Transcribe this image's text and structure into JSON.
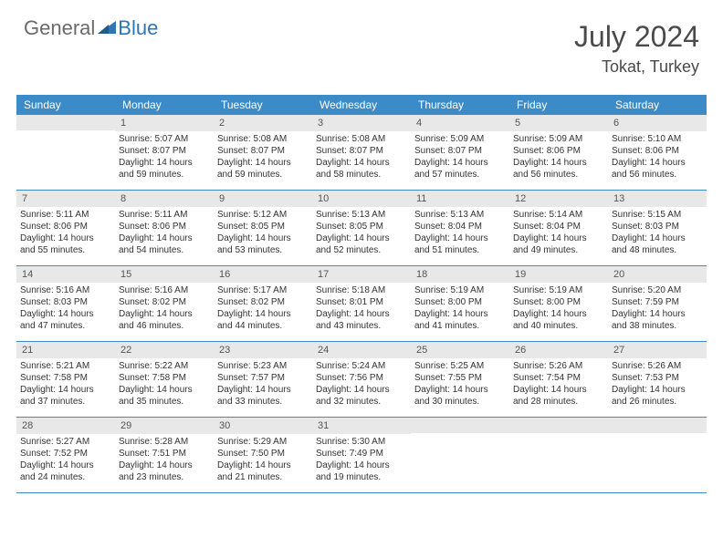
{
  "logo": {
    "part1": "General",
    "part2": "Blue"
  },
  "header": {
    "title": "July 2024",
    "location": "Tokat, Turkey"
  },
  "colors": {
    "header_bg": "#3b8bc9",
    "header_text": "#ffffff",
    "daynum_bg": "#e8e8e8",
    "text": "#333333",
    "logo_grey": "#6a6a6a",
    "logo_blue": "#2f75b5"
  },
  "dayNames": [
    "Sunday",
    "Monday",
    "Tuesday",
    "Wednesday",
    "Thursday",
    "Friday",
    "Saturday"
  ],
  "weeks": [
    [
      {
        "num": "",
        "lines": []
      },
      {
        "num": "1",
        "lines": [
          "Sunrise: 5:07 AM",
          "Sunset: 8:07 PM",
          "Daylight: 14 hours",
          "and 59 minutes."
        ]
      },
      {
        "num": "2",
        "lines": [
          "Sunrise: 5:08 AM",
          "Sunset: 8:07 PM",
          "Daylight: 14 hours",
          "and 59 minutes."
        ]
      },
      {
        "num": "3",
        "lines": [
          "Sunrise: 5:08 AM",
          "Sunset: 8:07 PM",
          "Daylight: 14 hours",
          "and 58 minutes."
        ]
      },
      {
        "num": "4",
        "lines": [
          "Sunrise: 5:09 AM",
          "Sunset: 8:07 PM",
          "Daylight: 14 hours",
          "and 57 minutes."
        ]
      },
      {
        "num": "5",
        "lines": [
          "Sunrise: 5:09 AM",
          "Sunset: 8:06 PM",
          "Daylight: 14 hours",
          "and 56 minutes."
        ]
      },
      {
        "num": "6",
        "lines": [
          "Sunrise: 5:10 AM",
          "Sunset: 8:06 PM",
          "Daylight: 14 hours",
          "and 56 minutes."
        ]
      }
    ],
    [
      {
        "num": "7",
        "lines": [
          "Sunrise: 5:11 AM",
          "Sunset: 8:06 PM",
          "Daylight: 14 hours",
          "and 55 minutes."
        ]
      },
      {
        "num": "8",
        "lines": [
          "Sunrise: 5:11 AM",
          "Sunset: 8:06 PM",
          "Daylight: 14 hours",
          "and 54 minutes."
        ]
      },
      {
        "num": "9",
        "lines": [
          "Sunrise: 5:12 AM",
          "Sunset: 8:05 PM",
          "Daylight: 14 hours",
          "and 53 minutes."
        ]
      },
      {
        "num": "10",
        "lines": [
          "Sunrise: 5:13 AM",
          "Sunset: 8:05 PM",
          "Daylight: 14 hours",
          "and 52 minutes."
        ]
      },
      {
        "num": "11",
        "lines": [
          "Sunrise: 5:13 AM",
          "Sunset: 8:04 PM",
          "Daylight: 14 hours",
          "and 51 minutes."
        ]
      },
      {
        "num": "12",
        "lines": [
          "Sunrise: 5:14 AM",
          "Sunset: 8:04 PM",
          "Daylight: 14 hours",
          "and 49 minutes."
        ]
      },
      {
        "num": "13",
        "lines": [
          "Sunrise: 5:15 AM",
          "Sunset: 8:03 PM",
          "Daylight: 14 hours",
          "and 48 minutes."
        ]
      }
    ],
    [
      {
        "num": "14",
        "lines": [
          "Sunrise: 5:16 AM",
          "Sunset: 8:03 PM",
          "Daylight: 14 hours",
          "and 47 minutes."
        ]
      },
      {
        "num": "15",
        "lines": [
          "Sunrise: 5:16 AM",
          "Sunset: 8:02 PM",
          "Daylight: 14 hours",
          "and 46 minutes."
        ]
      },
      {
        "num": "16",
        "lines": [
          "Sunrise: 5:17 AM",
          "Sunset: 8:02 PM",
          "Daylight: 14 hours",
          "and 44 minutes."
        ]
      },
      {
        "num": "17",
        "lines": [
          "Sunrise: 5:18 AM",
          "Sunset: 8:01 PM",
          "Daylight: 14 hours",
          "and 43 minutes."
        ]
      },
      {
        "num": "18",
        "lines": [
          "Sunrise: 5:19 AM",
          "Sunset: 8:00 PM",
          "Daylight: 14 hours",
          "and 41 minutes."
        ]
      },
      {
        "num": "19",
        "lines": [
          "Sunrise: 5:19 AM",
          "Sunset: 8:00 PM",
          "Daylight: 14 hours",
          "and 40 minutes."
        ]
      },
      {
        "num": "20",
        "lines": [
          "Sunrise: 5:20 AM",
          "Sunset: 7:59 PM",
          "Daylight: 14 hours",
          "and 38 minutes."
        ]
      }
    ],
    [
      {
        "num": "21",
        "lines": [
          "Sunrise: 5:21 AM",
          "Sunset: 7:58 PM",
          "Daylight: 14 hours",
          "and 37 minutes."
        ]
      },
      {
        "num": "22",
        "lines": [
          "Sunrise: 5:22 AM",
          "Sunset: 7:58 PM",
          "Daylight: 14 hours",
          "and 35 minutes."
        ]
      },
      {
        "num": "23",
        "lines": [
          "Sunrise: 5:23 AM",
          "Sunset: 7:57 PM",
          "Daylight: 14 hours",
          "and 33 minutes."
        ]
      },
      {
        "num": "24",
        "lines": [
          "Sunrise: 5:24 AM",
          "Sunset: 7:56 PM",
          "Daylight: 14 hours",
          "and 32 minutes."
        ]
      },
      {
        "num": "25",
        "lines": [
          "Sunrise: 5:25 AM",
          "Sunset: 7:55 PM",
          "Daylight: 14 hours",
          "and 30 minutes."
        ]
      },
      {
        "num": "26",
        "lines": [
          "Sunrise: 5:26 AM",
          "Sunset: 7:54 PM",
          "Daylight: 14 hours",
          "and 28 minutes."
        ]
      },
      {
        "num": "27",
        "lines": [
          "Sunrise: 5:26 AM",
          "Sunset: 7:53 PM",
          "Daylight: 14 hours",
          "and 26 minutes."
        ]
      }
    ],
    [
      {
        "num": "28",
        "lines": [
          "Sunrise: 5:27 AM",
          "Sunset: 7:52 PM",
          "Daylight: 14 hours",
          "and 24 minutes."
        ]
      },
      {
        "num": "29",
        "lines": [
          "Sunrise: 5:28 AM",
          "Sunset: 7:51 PM",
          "Daylight: 14 hours",
          "and 23 minutes."
        ]
      },
      {
        "num": "30",
        "lines": [
          "Sunrise: 5:29 AM",
          "Sunset: 7:50 PM",
          "Daylight: 14 hours",
          "and 21 minutes."
        ]
      },
      {
        "num": "31",
        "lines": [
          "Sunrise: 5:30 AM",
          "Sunset: 7:49 PM",
          "Daylight: 14 hours",
          "and 19 minutes."
        ]
      },
      {
        "num": "",
        "lines": []
      },
      {
        "num": "",
        "lines": []
      },
      {
        "num": "",
        "lines": []
      }
    ]
  ]
}
